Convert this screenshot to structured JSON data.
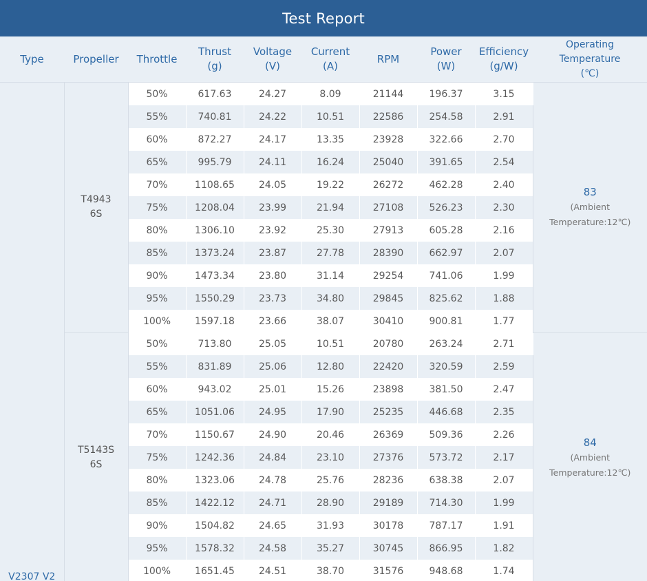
{
  "title": "Test Report",
  "headers": {
    "type": "Type",
    "propeller": "Propeller",
    "throttle": "Throttle",
    "thrust": [
      "Thrust",
      "(g)"
    ],
    "voltage": [
      "Voltage",
      "(V)"
    ],
    "current": [
      "Current",
      "(A)"
    ],
    "rpm": "RPM",
    "power": [
      "Power",
      "(W)"
    ],
    "efficiency": [
      "Efficiency",
      "(g/W)"
    ],
    "temperature": [
      "Operating",
      "Temperature",
      "(℃)"
    ]
  },
  "type_value": "V2307 V2",
  "groups": [
    {
      "propeller": [
        "T4943",
        "6S"
      ],
      "temperature": "83",
      "ambient": [
        "(Ambient",
        "Temperature:12℃)"
      ],
      "rows": [
        [
          "50%",
          "617.63",
          "24.27",
          "8.09",
          "21144",
          "196.37",
          "3.15"
        ],
        [
          "55%",
          "740.81",
          "24.22",
          "10.51",
          "22586",
          "254.58",
          "2.91"
        ],
        [
          "60%",
          "872.27",
          "24.17",
          "13.35",
          "23928",
          "322.66",
          "2.70"
        ],
        [
          "65%",
          "995.79",
          "24.11",
          "16.24",
          "25040",
          "391.65",
          "2.54"
        ],
        [
          "70%",
          "1108.65",
          "24.05",
          "19.22",
          "26272",
          "462.28",
          "2.40"
        ],
        [
          "75%",
          "1208.04",
          "23.99",
          "21.94",
          "27108",
          "526.23",
          "2.30"
        ],
        [
          "80%",
          "1306.10",
          "23.92",
          "25.30",
          "27913",
          "605.28",
          "2.16"
        ],
        [
          "85%",
          "1373.24",
          "23.87",
          "27.78",
          "28390",
          "662.97",
          "2.07"
        ],
        [
          "90%",
          "1473.34",
          "23.80",
          "31.14",
          "29254",
          "741.06",
          "1.99"
        ],
        [
          "95%",
          "1550.29",
          "23.73",
          "34.80",
          "29845",
          "825.62",
          "1.88"
        ],
        [
          "100%",
          "1597.18",
          "23.66",
          "38.07",
          "30410",
          "900.81",
          "1.77"
        ]
      ]
    },
    {
      "propeller": [
        "T5143S",
        "6S"
      ],
      "temperature": "84",
      "ambient": [
        "(Ambient",
        "Temperature:12℃)"
      ],
      "rows": [
        [
          "50%",
          "713.80",
          "25.05",
          "10.51",
          "20780",
          "263.24",
          "2.71"
        ],
        [
          "55%",
          "831.89",
          "25.06",
          "12.80",
          "22420",
          "320.59",
          "2.59"
        ],
        [
          "60%",
          "943.02",
          "25.01",
          "15.26",
          "23898",
          "381.50",
          "2.47"
        ],
        [
          "65%",
          "1051.06",
          "24.95",
          "17.90",
          "25235",
          "446.68",
          "2.35"
        ],
        [
          "70%",
          "1150.67",
          "24.90",
          "20.46",
          "26369",
          "509.36",
          "2.26"
        ],
        [
          "75%",
          "1242.36",
          "24.84",
          "23.10",
          "27376",
          "573.72",
          "2.17"
        ],
        [
          "80%",
          "1323.06",
          "24.78",
          "25.76",
          "28236",
          "638.38",
          "2.07"
        ],
        [
          "85%",
          "1422.12",
          "24.71",
          "28.90",
          "29189",
          "714.30",
          "1.99"
        ],
        [
          "90%",
          "1504.82",
          "24.65",
          "31.93",
          "30178",
          "787.17",
          "1.91"
        ],
        [
          "95%",
          "1578.32",
          "24.58",
          "35.27",
          "30745",
          "866.95",
          "1.82"
        ],
        [
          "100%",
          "1651.45",
          "24.51",
          "38.70",
          "31576",
          "948.68",
          "1.74"
        ]
      ]
    }
  ],
  "colors": {
    "banner": "#2c5f95",
    "header_text": "#2f6aa7",
    "stripe": "#e9eff5"
  }
}
